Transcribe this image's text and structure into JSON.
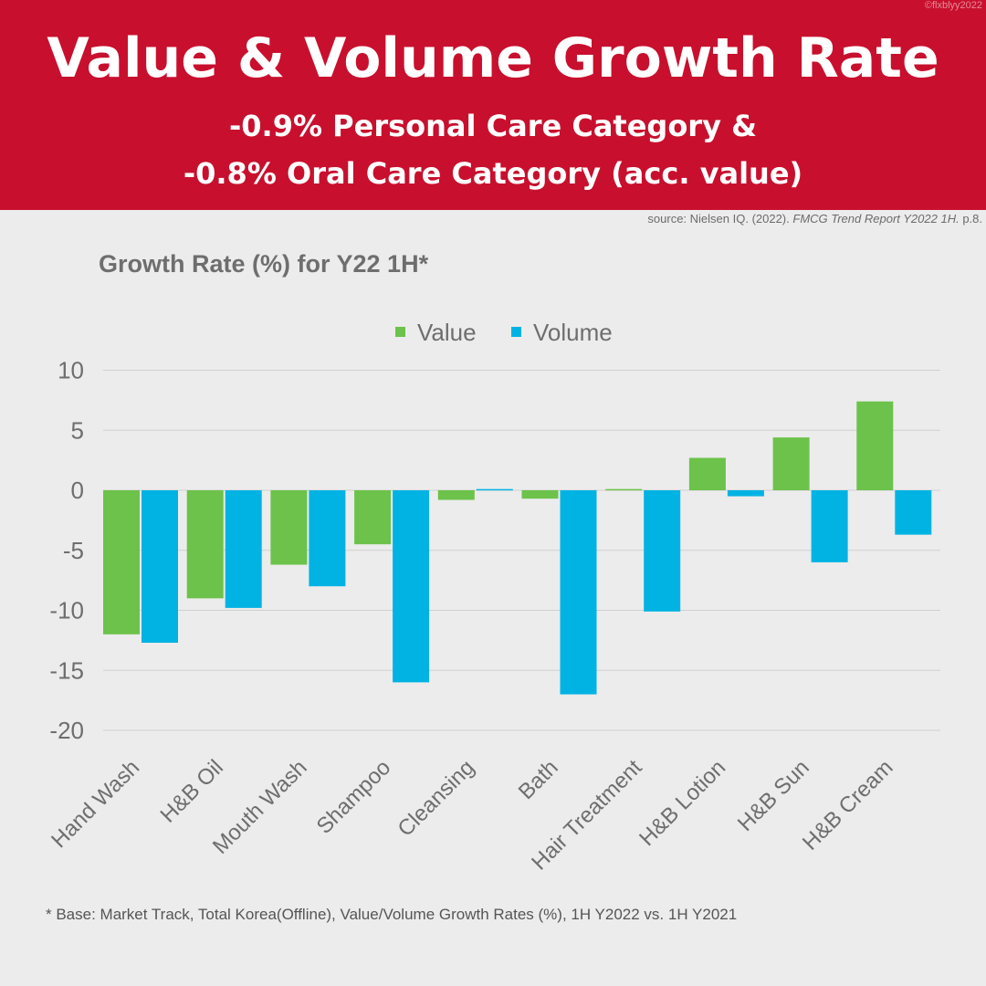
{
  "header": {
    "title": "Value & Volume Growth Rate",
    "subtitle_line1": "-0.9% Personal Care Category &",
    "subtitle_line2": "-0.8% Oral Care Category (acc. value)",
    "credit": "©flxblyy2022"
  },
  "source": {
    "prefix": "source: Nielsen IQ. (2022). ",
    "title": "FMCG Trend Report Y2022 1H.",
    "suffix": " p.8."
  },
  "footnote": "* Base: Market Track, Total Korea(Offline), Value/Volume Growth Rates (%), 1H Y2022 vs. 1H Y2021",
  "chart_data": {
    "type": "bar",
    "title": "Growth Rate (%) for Y22 1H*",
    "categories": [
      "Hand Wash",
      "H&B Oil",
      "Mouth Wash",
      "Shampoo",
      "Cleansing",
      "Bath",
      "Hair Treatment",
      "H&B Lotion",
      "H&B Sun",
      "H&B Cream"
    ],
    "series": [
      {
        "name": "Value",
        "color": "#6cc24a",
        "values": [
          -12.0,
          -9.0,
          -6.2,
          -4.5,
          -0.8,
          -0.7,
          0.1,
          2.7,
          4.4,
          7.4
        ]
      },
      {
        "name": "Volume",
        "color": "#00b3e3",
        "values": [
          -12.7,
          -9.8,
          -8.0,
          -16.0,
          0.1,
          -17.0,
          -10.1,
          -0.5,
          -6.0,
          -3.7
        ]
      }
    ],
    "ylim": [
      -20,
      10
    ],
    "yticks": [
      10,
      5,
      0,
      -5,
      -10,
      -15,
      -20
    ],
    "grid": true,
    "legend": "top"
  }
}
